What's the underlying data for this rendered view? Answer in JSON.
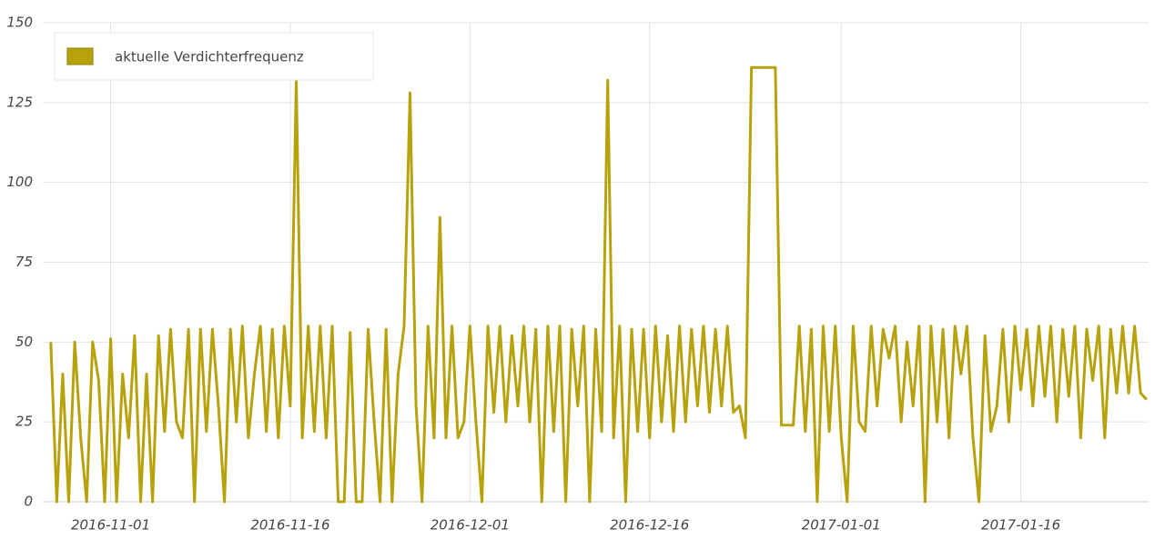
{
  "chart_data": {
    "type": "line",
    "x": [
      "2016-10-27T00:00",
      "2016-10-27T12:00",
      "2016-10-28T00:00",
      "2016-10-28T12:00",
      "2016-10-29T00:00",
      "2016-10-29T12:00",
      "2016-10-30T00:00",
      "2016-10-30T12:00",
      "2016-10-31T00:00",
      "2016-10-31T12:00",
      "2016-11-01T00:00",
      "2016-11-01T12:00",
      "2016-11-02T00:00",
      "2016-11-02T12:00",
      "2016-11-03T00:00",
      "2016-11-03T12:00",
      "2016-11-04T00:00",
      "2016-11-04T12:00",
      "2016-11-05T00:00",
      "2016-11-05T12:00",
      "2016-11-06T00:00",
      "2016-11-06T12:00",
      "2016-11-07T00:00",
      "2016-11-07T12:00",
      "2016-11-08T00:00",
      "2016-11-08T12:00",
      "2016-11-09T00:00",
      "2016-11-09T12:00",
      "2016-11-10T00:00",
      "2016-11-10T12:00",
      "2016-11-11T00:00",
      "2016-11-11T12:00",
      "2016-11-12T00:00",
      "2016-11-12T12:00",
      "2016-11-13T00:00",
      "2016-11-13T12:00",
      "2016-11-14T00:00",
      "2016-11-14T12:00",
      "2016-11-15T00:00",
      "2016-11-15T12:00",
      "2016-11-16T00:00",
      "2016-11-16T12:00",
      "2016-11-17T00:00",
      "2016-11-17T12:00",
      "2016-11-18T00:00",
      "2016-11-18T12:00",
      "2016-11-19T00:00",
      "2016-11-19T12:00",
      "2016-11-20T00:00",
      "2016-11-20T12:00",
      "2016-11-21T00:00",
      "2016-11-21T12:00",
      "2016-11-22T00:00",
      "2016-11-22T12:00",
      "2016-11-23T00:00",
      "2016-11-23T12:00",
      "2016-11-24T00:00",
      "2016-11-24T12:00",
      "2016-11-25T00:00",
      "2016-11-25T12:00",
      "2016-11-26T00:00",
      "2016-11-26T12:00",
      "2016-11-27T00:00",
      "2016-11-27T12:00",
      "2016-11-28T00:00",
      "2016-11-28T12:00",
      "2016-11-29T00:00",
      "2016-11-29T12:00",
      "2016-11-30T00:00",
      "2016-11-30T12:00",
      "2016-12-01T00:00",
      "2016-12-01T12:00",
      "2016-12-02T00:00",
      "2016-12-02T12:00",
      "2016-12-03T00:00",
      "2016-12-03T12:00",
      "2016-12-04T00:00",
      "2016-12-04T12:00",
      "2016-12-05T00:00",
      "2016-12-05T12:00",
      "2016-12-06T00:00",
      "2016-12-06T12:00",
      "2016-12-07T00:00",
      "2016-12-07T12:00",
      "2016-12-08T00:00",
      "2016-12-08T12:00",
      "2016-12-09T00:00",
      "2016-12-09T12:00",
      "2016-12-10T00:00",
      "2016-12-10T12:00",
      "2016-12-11T00:00",
      "2016-12-11T12:00",
      "2016-12-12T00:00",
      "2016-12-12T12:00",
      "2016-12-13T00:00",
      "2016-12-13T12:00",
      "2016-12-14T00:00",
      "2016-12-14T12:00",
      "2016-12-15T00:00",
      "2016-12-15T12:00",
      "2016-12-16T00:00",
      "2016-12-16T12:00",
      "2016-12-17T00:00",
      "2016-12-17T12:00",
      "2016-12-18T00:00",
      "2016-12-18T12:00",
      "2016-12-19T00:00",
      "2016-12-19T12:00",
      "2016-12-20T00:00",
      "2016-12-20T12:00",
      "2016-12-21T00:00",
      "2016-12-21T12:00",
      "2016-12-22T00:00",
      "2016-12-22T12:00",
      "2016-12-23T00:00",
      "2016-12-23T12:00",
      "2016-12-24T00:00",
      "2016-12-24T12:00",
      "2016-12-25T00:00",
      "2016-12-25T12:00",
      "2016-12-26T00:00",
      "2016-12-26T12:00",
      "2016-12-27T00:00",
      "2016-12-27T12:00",
      "2016-12-28T00:00",
      "2016-12-28T12:00",
      "2016-12-29T00:00",
      "2016-12-29T12:00",
      "2016-12-30T00:00",
      "2016-12-30T12:00",
      "2016-12-31T00:00",
      "2016-12-31T12:00",
      "2017-01-01T00:00",
      "2017-01-01T12:00",
      "2017-01-02T00:00",
      "2017-01-02T12:00",
      "2017-01-03T00:00",
      "2017-01-03T12:00",
      "2017-01-04T00:00",
      "2017-01-04T12:00",
      "2017-01-05T00:00",
      "2017-01-05T12:00",
      "2017-01-06T00:00",
      "2017-01-06T12:00",
      "2017-01-07T00:00",
      "2017-01-07T12:00",
      "2017-01-08T00:00",
      "2017-01-08T12:00",
      "2017-01-09T00:00",
      "2017-01-09T12:00",
      "2017-01-10T00:00",
      "2017-01-10T12:00",
      "2017-01-11T00:00",
      "2017-01-11T12:00",
      "2017-01-12T00:00",
      "2017-01-12T12:00",
      "2017-01-13T00:00",
      "2017-01-13T12:00",
      "2017-01-14T00:00",
      "2017-01-14T12:00",
      "2017-01-15T00:00",
      "2017-01-15T12:00",
      "2017-01-16T00:00",
      "2017-01-16T12:00",
      "2017-01-17T00:00",
      "2017-01-17T12:00",
      "2017-01-18T00:00",
      "2017-01-18T12:00",
      "2017-01-19T00:00",
      "2017-01-19T12:00",
      "2017-01-20T00:00",
      "2017-01-20T12:00",
      "2017-01-21T00:00",
      "2017-01-21T12:00",
      "2017-01-22T00:00",
      "2017-01-22T12:00",
      "2017-01-23T00:00",
      "2017-01-23T12:00",
      "2017-01-24T00:00",
      "2017-01-24T12:00",
      "2017-01-25T00:00",
      "2017-01-25T12:00",
      "2017-01-26T00:00",
      "2017-01-26T12:00"
    ],
    "series": [
      {
        "name": "aktuelle Verdichterfrequenz",
        "color": "#b8a20c",
        "values": [
          50,
          0,
          40,
          0,
          50,
          20,
          0,
          50,
          38,
          0,
          51,
          0,
          40,
          20,
          52,
          0,
          40,
          0,
          52,
          22,
          54,
          25,
          20,
          54,
          0,
          54,
          22,
          54,
          30,
          0,
          54,
          25,
          55,
          20,
          40,
          55,
          22,
          54,
          20,
          55,
          30,
          132,
          20,
          55,
          22,
          55,
          20,
          55,
          0,
          0,
          53,
          0,
          0,
          54,
          25,
          0,
          54,
          0,
          40,
          55,
          128,
          30,
          0,
          55,
          20,
          89,
          20,
          55,
          20,
          25,
          55,
          25,
          0,
          55,
          28,
          55,
          25,
          52,
          30,
          55,
          25,
          54,
          0,
          55,
          22,
          55,
          0,
          54,
          30,
          55,
          0,
          54,
          22,
          132,
          20,
          55,
          0,
          54,
          22,
          54,
          20,
          55,
          25,
          52,
          22,
          55,
          25,
          54,
          30,
          55,
          28,
          54,
          30,
          55,
          28,
          30,
          20,
          136,
          136,
          136,
          136,
          136,
          24,
          24,
          24,
          55,
          22,
          54,
          0,
          55,
          22,
          55,
          20,
          0,
          55,
          25,
          22,
          55,
          30,
          54,
          45,
          55,
          25,
          50,
          30,
          55,
          0,
          55,
          25,
          54,
          20,
          55,
          40,
          55,
          20,
          0,
          52,
          22,
          30,
          54,
          25,
          55,
          35,
          54,
          30,
          55,
          33,
          55,
          25,
          54,
          33,
          55,
          20,
          54,
          38,
          55,
          20,
          54,
          34,
          55,
          34,
          55,
          34,
          32
        ]
      }
    ],
    "xlim": [
      "2016-10-26T08:00",
      "2017-01-26T16:00"
    ],
    "xticks": [
      "2016-11-01",
      "2016-11-16",
      "2016-12-01",
      "2016-12-16",
      "2017-01-01",
      "2017-01-16"
    ],
    "ylim": [
      0,
      150
    ],
    "yticks": [
      0,
      25,
      50,
      75,
      100,
      125,
      150
    ],
    "grid": true,
    "legend": "top-left"
  }
}
